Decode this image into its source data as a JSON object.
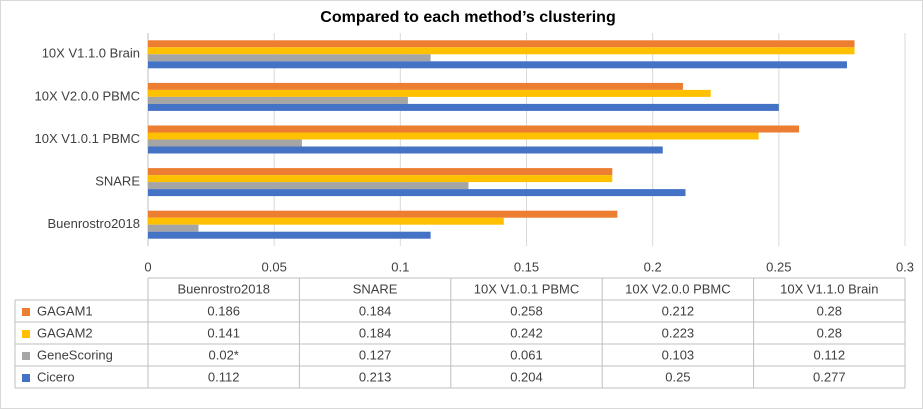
{
  "chart_data": {
    "type": "bar",
    "orientation": "horizontal",
    "title": "Compared to each method’s clustering",
    "categories": [
      "Buenrostro2018",
      "SNARE",
      "10X V1.0.1 PBMC",
      "10X V2.0.0 PBMC",
      "10X V1.1.0 Brain"
    ],
    "series": [
      {
        "name": "GAGAM1",
        "color": "#ED7D31",
        "values": [
          0.186,
          0.184,
          0.258,
          0.212,
          0.28
        ]
      },
      {
        "name": "GAGAM2",
        "color": "#FFC000",
        "values": [
          0.141,
          0.184,
          0.242,
          0.223,
          0.28
        ]
      },
      {
        "name": "GeneScoring",
        "color": "#A5A5A5",
        "values": [
          0.02,
          0.127,
          0.061,
          0.103,
          0.112
        ],
        "value_labels": [
          "0.02*",
          "0.127",
          "0.061",
          "0.103",
          "0.112"
        ]
      },
      {
        "name": "Cicero",
        "color": "#4472C4",
        "values": [
          0.112,
          0.213,
          0.204,
          0.25,
          0.277
        ]
      }
    ],
    "xlim": [
      0,
      0.3
    ],
    "xticks": [
      0,
      0.05,
      0.1,
      0.15,
      0.2,
      0.25,
      0.3
    ],
    "grid": true,
    "data_table": true
  }
}
